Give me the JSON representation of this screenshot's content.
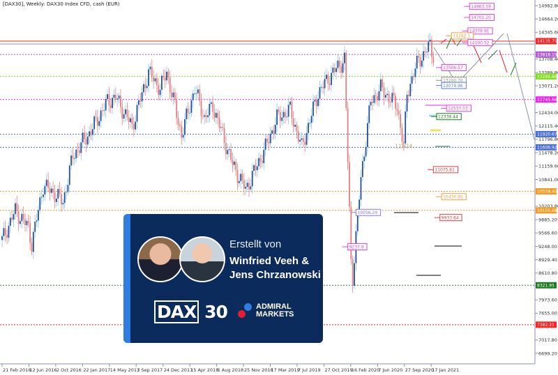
{
  "title": "[DAX30], Weekly:  DAX30 Index CFD, cash (EUR)",
  "card": {
    "subtitle": "Erstellt von",
    "names_line1": "Winfried Veeh &",
    "names_line2": "Jens Chrzanowski",
    "logo_dax": "DAX 30",
    "logo_admiral": "ADMIRAL MARKETS"
  },
  "colors": {
    "up": "#1f4f9a",
    "down": "#e57f7f",
    "background": "#ffffff",
    "card": "#0b2b5c",
    "card_stripe": "#2f7de1"
  },
  "chart_data": {
    "type": "candlestick",
    "title": "[DAX30], Weekly:  DAX30 Index CFD, cash (EUR)",
    "ylim": [
      6699.2,
      14982.8
    ],
    "y_ticks": [
      "14982.80",
      "14664.20",
      "14345.60",
      "13708.40",
      "13389.80",
      "13071.20",
      "12434.00",
      "12115.40",
      "11796.80",
      "11478.20",
      "11159.60",
      "10841.00",
      "10203.80",
      "9885.20",
      "9566.60",
      "9248.00",
      "8929.40",
      "8610.80",
      "7973.60",
      "7655.00",
      "7017.80",
      "6699.20"
    ],
    "x_ticks": [
      "21 Feb 2016",
      "12 Jun 2016",
      "2 Oct 2016",
      "22 Jan 2017",
      "14 May 2017",
      "3 Sep 2017",
      "24 Dec 2017",
      "15 Apr 2018",
      "5 Aug 2018",
      "25 Nov 2018",
      "17 Mar 2019",
      "7 Jul 2019",
      "27 Oct 2019",
      "16 Feb 2020",
      "7 Jun 2020",
      "27 Sep 2020",
      "17 Jan 2021"
    ],
    "approx_closes": [
      [
        "2016-02-21",
        9400
      ],
      [
        "2016-04-17",
        10100
      ],
      [
        "2016-06-12",
        9700
      ],
      [
        "2016-06-26",
        9300
      ],
      [
        "2016-08-14",
        10700
      ],
      [
        "2016-10-02",
        10500
      ],
      [
        "2016-11-06",
        10300
      ],
      [
        "2016-12-18",
        11400
      ],
      [
        "2017-03-05",
        12000
      ],
      [
        "2017-05-14",
        12700
      ],
      [
        "2017-06-18",
        12800
      ],
      [
        "2017-08-27",
        12100
      ],
      [
        "2017-11-05",
        13400
      ],
      [
        "2017-12-24",
        13000
      ],
      [
        "2018-01-21",
        13400
      ],
      [
        "2018-03-25",
        11900
      ],
      [
        "2018-05-20",
        13000
      ],
      [
        "2018-07-01",
        12300
      ],
      [
        "2018-08-05",
        12600
      ],
      [
        "2018-10-28",
        11200
      ],
      [
        "2018-12-23",
        10600
      ],
      [
        "2019-03-17",
        11600
      ],
      [
        "2019-05-05",
        12300
      ],
      [
        "2019-06-30",
        12500
      ],
      [
        "2019-08-18",
        11600
      ],
      [
        "2019-10-27",
        12900
      ],
      [
        "2019-12-15",
        13300
      ],
      [
        "2020-02-16",
        13700
      ],
      [
        "2020-03-15",
        8900
      ],
      [
        "2020-03-22",
        8500
      ],
      [
        "2020-04-26",
        10900
      ],
      [
        "2020-06-07",
        12700
      ],
      [
        "2020-07-19",
        13000
      ],
      [
        "2020-09-27",
        12600
      ],
      [
        "2020-10-25",
        11600
      ],
      [
        "2020-11-08",
        12900
      ],
      [
        "2020-12-27",
        13700
      ],
      [
        "2021-01-17",
        13800
      ],
      [
        "2021-02-14",
        14050
      ],
      [
        "2021-02-28",
        13800
      ]
    ],
    "levels": [
      {
        "value": 14135.75,
        "label": "14135.75",
        "color": "#ff2020",
        "style": "solid"
      },
      {
        "value": 14068,
        "label": "",
        "color": "#8a94a8",
        "style": "solid"
      },
      {
        "value": 13818.15,
        "label": "13818.15",
        "color": "#b45cd6",
        "style": "dotted"
      },
      {
        "value": 13295.66,
        "label": "13295.66",
        "color": "#7fe020",
        "style": "dotted"
      },
      {
        "value": 12745.66,
        "label": "12745.66",
        "color": "#ee22ee",
        "style": "dotted"
      },
      {
        "value": 11920.67,
        "label": "11920.67",
        "color": "#4a6fd8",
        "style": "dotted"
      },
      {
        "value": 11606.92,
        "label": "11606.92",
        "color": "#4a6fd8",
        "style": "dotted"
      },
      {
        "value": 10559.4,
        "label": "10559.40",
        "color": "#f59a20",
        "style": "dotted"
      },
      {
        "value": 10105.68,
        "label": "10105.68",
        "color": "#f59a20",
        "style": "dotted"
      },
      {
        "value": 8321.95,
        "label": "8321.95",
        "color": "#1f7a1f",
        "style": "dotted"
      },
      {
        "value": 7382.21,
        "label": "7382.21",
        "color": "#ff2020",
        "style": "dotted"
      }
    ],
    "annotations": [
      {
        "value": 14963.59,
        "label": "14963.59",
        "color": "#e040e0",
        "date": "2021-08-01"
      },
      {
        "value": 14701.2,
        "label": "14701.20",
        "color": "#e040e0",
        "date": "2021-08-01"
      },
      {
        "value": 14378.91,
        "label": "14378.91",
        "color": "#e040e0",
        "date": "2021-07-25"
      },
      {
        "value": 14262.1,
        "label": "14262.1",
        "color": "#f0a040",
        "date": "2021-05-16"
      },
      {
        "value": 14100.52,
        "label": "14100.52",
        "color": "#e040e0",
        "date": "2021-07-25"
      },
      {
        "value": 13506.57,
        "label": "13506.57",
        "color": "#e040e0",
        "date": "2021-04-04"
      },
      {
        "value": 13200.7,
        "label": "13200.70",
        "color": "#909090",
        "date": "2021-04-04"
      },
      {
        "value": 13079.96,
        "label": "13079.96",
        "color": "#5a7ad8",
        "date": "2021-04-04"
      },
      {
        "value": 12537.03,
        "label": "12537.03",
        "color": "#e040e0",
        "date": "2021-04-25"
      },
      {
        "value": 12339.44,
        "label": "12339.44",
        "color": "#1f7a1f",
        "date": "2021-03-14"
      },
      {
        "value": 11075.61,
        "label": "11075.61",
        "color": "#e04040",
        "date": "2021-02-28"
      },
      {
        "value": 10430.95,
        "label": "10430.95",
        "color": "#f0a040",
        "date": "2021-04-04"
      },
      {
        "value": 9933.84,
        "label": "9933.84",
        "color": "#e04040",
        "date": "2021-03-28"
      },
      {
        "value": 10056.29,
        "label": "10056.29",
        "color": "#8a7ad8",
        "date": "2020-04-05"
      },
      {
        "value": 9237.9,
        "label": "9237.9",
        "color": "#e040e0",
        "date": "2020-03-01"
      }
    ],
    "text_marks": [
      {
        "value": 11624,
        "label": "11624",
        "color": "#c8a070"
      }
    ]
  }
}
